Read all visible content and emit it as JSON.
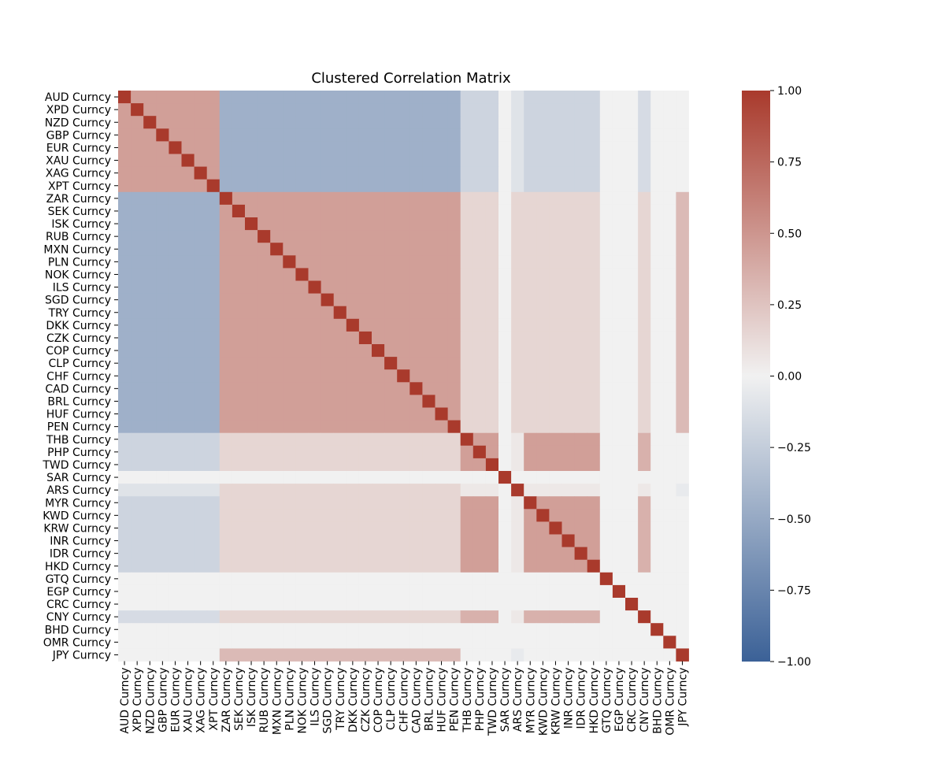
{
  "chart_data": {
    "type": "heatmap",
    "title": "Clustered Correlation Matrix",
    "xlabel": "",
    "ylabel": "",
    "labels": [
      "AUD Curncy",
      "XPD Curncy",
      "NZD Curncy",
      "GBP Curncy",
      "EUR Curncy",
      "XAU Curncy",
      "XAG Curncy",
      "XPT Curncy",
      "ZAR Curncy",
      "SEK Curncy",
      "ISK Curncy",
      "RUB Curncy",
      "MXN Curncy",
      "PLN Curncy",
      "NOK Curncy",
      "ILS Curncy",
      "SGD Curncy",
      "TRY Curncy",
      "DKK Curncy",
      "CZK Curncy",
      "COP Curncy",
      "CLP Curncy",
      "CHF Curncy",
      "CAD Curncy",
      "BRL Curncy",
      "HUF Curncy",
      "PEN Curncy",
      "THB Curncy",
      "PHP Curncy",
      "TWD Curncy",
      "SAR Curncy",
      "ARS Curncy",
      "MYR Curncy",
      "KWD Curncy",
      "KRW Curncy",
      "INR Curncy",
      "IDR Curncy",
      "HKD Curncy",
      "GTQ Curncy",
      "EGP Curncy",
      "CRC Curncy",
      "CNY Curncy",
      "BHD Curncy",
      "OMR Curncy",
      "JPY Curncy"
    ],
    "groups": {
      "comment_free": true,
      "membership": [
        0,
        0,
        0,
        0,
        0,
        0,
        0,
        0,
        1,
        1,
        1,
        1,
        1,
        1,
        1,
        1,
        1,
        1,
        1,
        1,
        1,
        1,
        1,
        1,
        1,
        1,
        1,
        2,
        2,
        2,
        3,
        4,
        2,
        2,
        2,
        2,
        2,
        2,
        3,
        3,
        3,
        5,
        3,
        3,
        6
      ],
      "block_values": [
        [
          0.45,
          -0.45,
          -0.2,
          0.0,
          -0.1,
          -0.15,
          0.0
        ],
        [
          -0.45,
          0.45,
          0.15,
          0.0,
          0.15,
          0.15,
          0.3
        ],
        [
          -0.2,
          0.15,
          0.45,
          0.0,
          0.05,
          0.35,
          0.0
        ],
        [
          0.0,
          0.0,
          0.0,
          0.0,
          0.0,
          0.0,
          0.0
        ],
        [
          -0.1,
          0.15,
          0.05,
          0.0,
          1.0,
          0.05,
          -0.05
        ],
        [
          -0.15,
          0.15,
          0.35,
          0.0,
          0.05,
          1.0,
          0.0
        ],
        [
          0.0,
          0.3,
          0.0,
          0.0,
          -0.05,
          0.0,
          1.0
        ]
      ]
    },
    "diagonal": 1.0,
    "vmin": -1.0,
    "vmax": 1.0,
    "colormap": {
      "low": "#3b6197",
      "mid": "#f1f1f1",
      "high": "#a93a2c"
    },
    "colorbar_ticks": [
      1.0,
      0.75,
      0.5,
      0.25,
      0.0,
      -0.25,
      -0.5,
      -0.75,
      -1.0
    ],
    "colorbar_tick_labels": [
      "1.00",
      "0.75",
      "0.50",
      "0.25",
      "0.00",
      "−0.25",
      "−0.50",
      "−0.75",
      "−1.00"
    ]
  }
}
